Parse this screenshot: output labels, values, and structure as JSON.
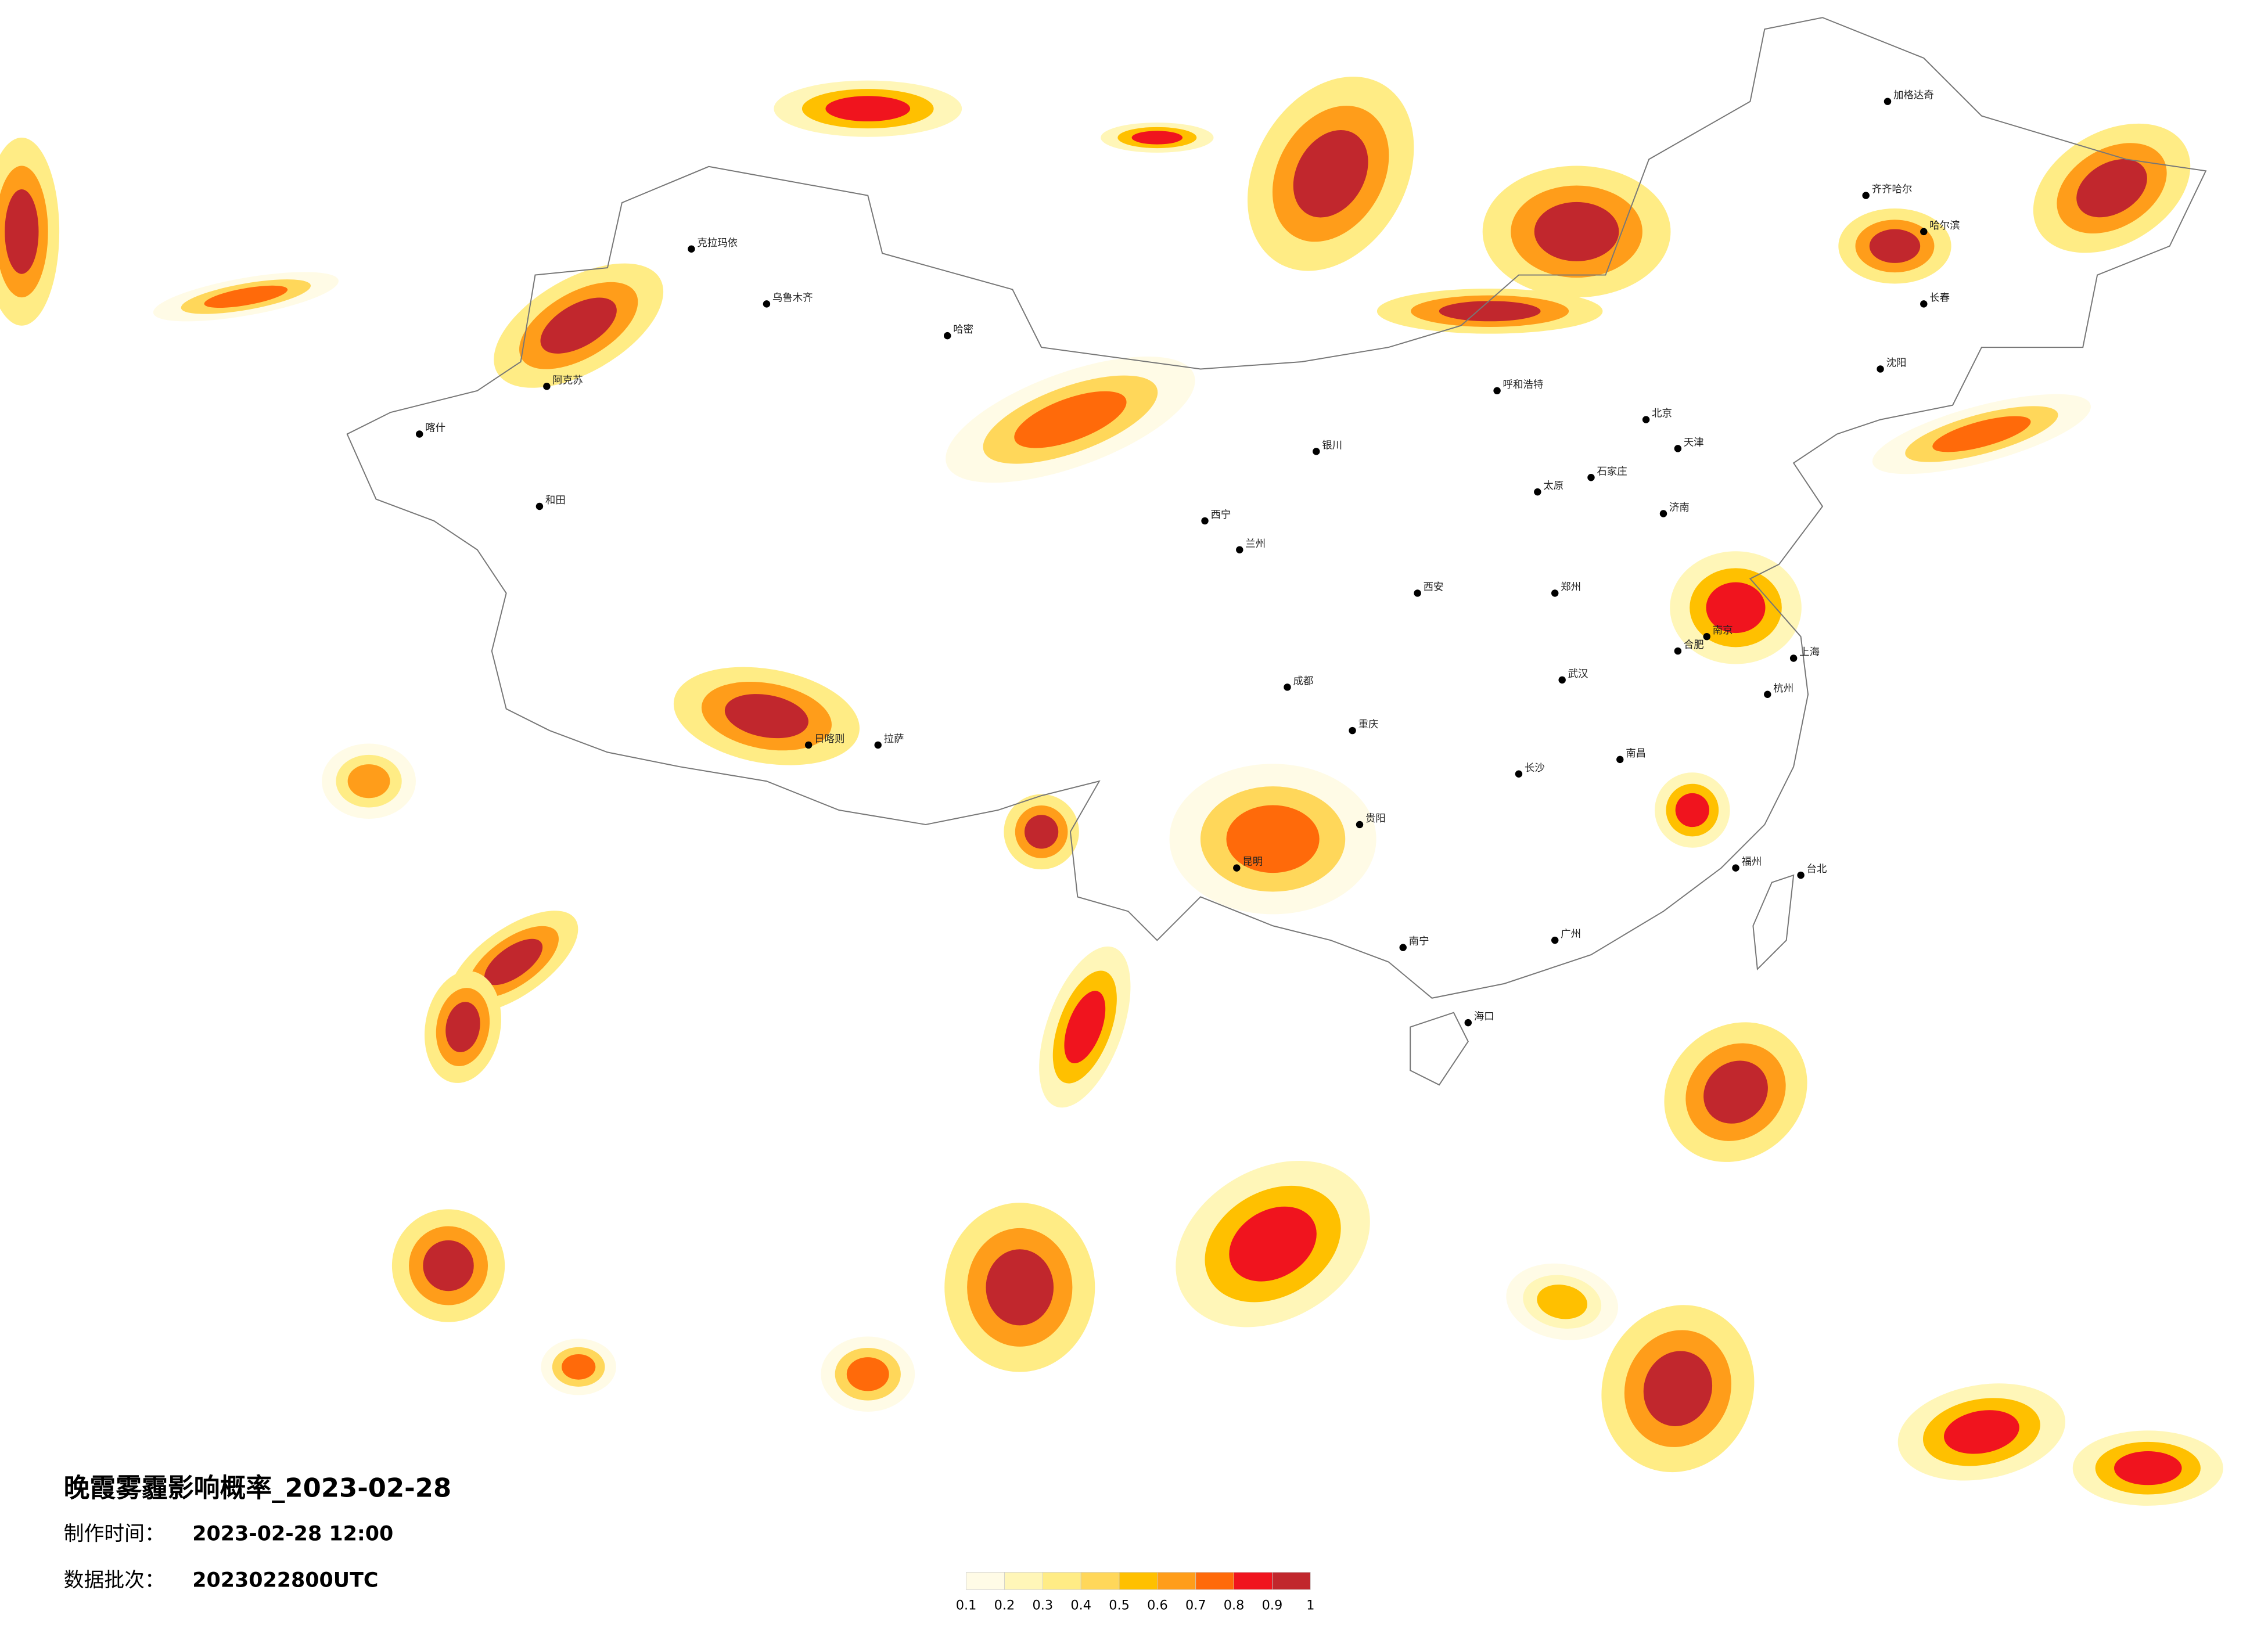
{
  "header": {
    "title": "晚霞雾霾影响概率_2023-02-28"
  },
  "info": [
    {
      "label": "制作时间：",
      "value": "2023-02-28 12:00"
    },
    {
      "label": "数据批次：",
      "value": "2023022800UTC"
    }
  ],
  "legend": {
    "colors": [
      "#fffbe6",
      "#fff6b8",
      "#ffec85",
      "#ffd75a",
      "#ffc000",
      "#ff9d1a",
      "#ff6a0a",
      "#f0141e",
      "#c1272d"
    ],
    "ticks": [
      0.1,
      0.2,
      0.3,
      0.4,
      0.5,
      0.6,
      0.7,
      0.8,
      0.9,
      1
    ]
  },
  "cities": [
    "克拉玛依",
    "乌鲁木齐",
    "哈密",
    "阿克苏",
    "和田",
    "喀什",
    "拉萨",
    "日喀则",
    "西宁",
    "兰州",
    "银川",
    "呼和浩特",
    "北京",
    "天津",
    "石家庄",
    "太原",
    "西安",
    "郑州",
    "济南",
    "南京",
    "上海",
    "杭州",
    "合肥",
    "武汉",
    "长沙",
    "南昌",
    "福州",
    "广州",
    "南宁",
    "海口",
    "贵阳",
    "昆明",
    "成都",
    "重庆",
    "哈尔滨",
    "长春",
    "沈阳",
    "台北",
    "齐齐哈尔",
    "加格达奇"
  ]
}
